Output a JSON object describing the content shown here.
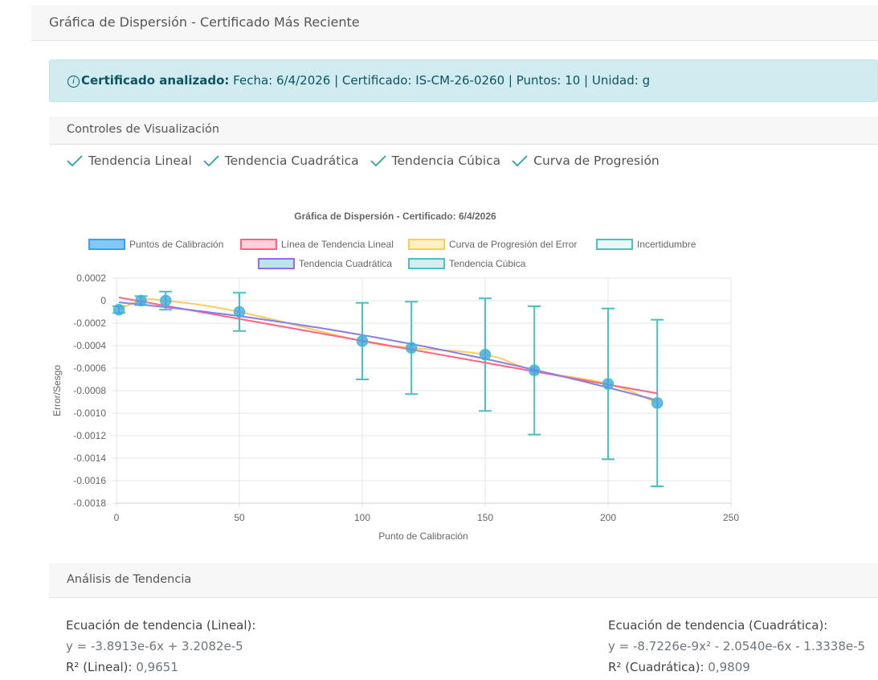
{
  "header": {
    "title": "Gráfica de Dispersión - Certificado Más Reciente"
  },
  "alert": {
    "label": "Certificado analizado:",
    "text": "Fecha: 6/4/2026 | Certificado: IS-CM-26-0260 | Puntos: 10 | Unidad: g"
  },
  "controls": {
    "title": "Controles de Visualización",
    "toggles": [
      "Tendencia Lineal",
      "Tendencia Cuadrática",
      "Tendencia Cúbica",
      "Curva de Progresión"
    ]
  },
  "analysis": {
    "title": "Análisis de Tendencia",
    "linear": {
      "title": "Ecuación de tendencia (Lineal):",
      "equation": "y = -3.8913e-6x + 3.2082e-5",
      "r2_label": "R² (Lineal):",
      "r2_value": "0,9651"
    },
    "quadratic": {
      "title": "Ecuación de tendencia (Cuadrática):",
      "equation": "y = -8.7226e-9x² - 2.0540e-6x - 1.3338e-5",
      "r2_label": "R² (Cuadrática):",
      "r2_value": "0,9809"
    }
  },
  "colors": {
    "points": "#36a2eb",
    "linear": "#ff6384",
    "progression": "#ffcd56",
    "uncertainty": "#4bc0c0",
    "quadratic": "#9966ff",
    "accent": "#20a8a8"
  },
  "chart_data": {
    "type": "scatter",
    "title": "Gráfica de Dispersión - Certificado: 6/4/2026",
    "xlabel": "Punto de Calibración",
    "ylabel": "Error/Sesgo",
    "xlim": [
      0,
      250
    ],
    "ylim": [
      -0.0018,
      0.0002
    ],
    "xticks": [
      "0",
      "50",
      "100",
      "150",
      "200",
      "250"
    ],
    "yticks": [
      "0.0002",
      "0",
      "-0.0002",
      "-0.0004",
      "-0.0006",
      "-0.0008",
      "-0.0010",
      "-0.0012",
      "-0.0014",
      "-0.0016",
      "-0.0018"
    ],
    "grid": true,
    "legend": [
      "Puntos de Calibración",
      "Línea de Tendencia Lineal",
      "Curva de Progresión del Error",
      "Incertidumbre",
      "Tendencia Cuadrática",
      "Tendencia Cúbica"
    ],
    "legend_position": "top",
    "points": [
      {
        "x": 1,
        "y": -8e-05,
        "u": 3e-05
      },
      {
        "x": 10,
        "y": 0.0,
        "u": 4e-05
      },
      {
        "x": 20,
        "y": 0.0,
        "u": 8e-05
      },
      {
        "x": 50,
        "y": -0.0001,
        "u": 0.00017
      },
      {
        "x": 100,
        "y": -0.00036,
        "u": 0.00034
      },
      {
        "x": 120,
        "y": -0.00042,
        "u": 0.00041
      },
      {
        "x": 150,
        "y": -0.00048,
        "u": 0.0005
      },
      {
        "x": 170,
        "y": -0.00062,
        "u": 0.00057
      },
      {
        "x": 200,
        "y": -0.00074,
        "u": 0.00067
      },
      {
        "x": 220,
        "y": -0.00091,
        "u": 0.00074
      }
    ],
    "trend_linear": {
      "slope": -3.8913e-06,
      "intercept": 3.2082e-05
    },
    "trend_quadratic": {
      "a": -8.7226e-09,
      "b": -2.054e-06,
      "c": -1.3338e-05
    }
  }
}
